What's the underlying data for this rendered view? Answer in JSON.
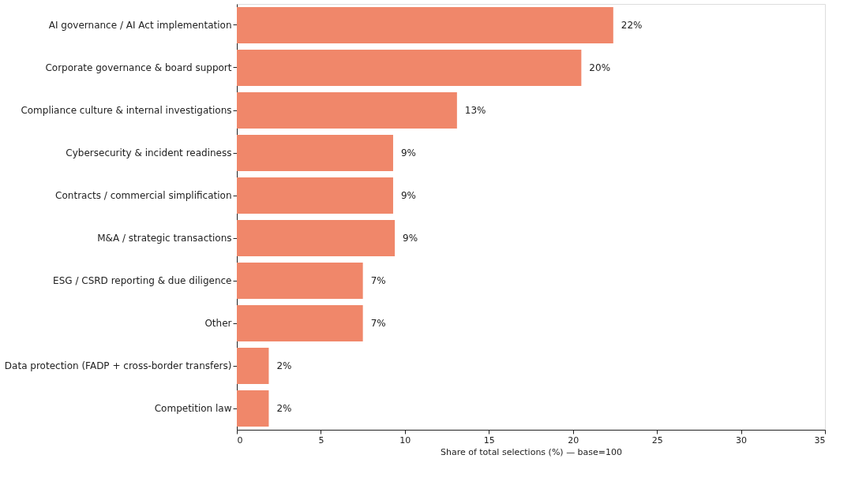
{
  "chart_data": {
    "type": "bar",
    "orientation": "horizontal",
    "xlabel": "Share of total selections (%) — base=100",
    "categories": [
      "AI governance / AI Act implementation",
      "Corporate governance & board support",
      "Compliance culture & internal investigations",
      "Cybersecurity & incident readiness",
      "Contracts / commercial simplification",
      "M&A / strategic transactions",
      "ESG / CSRD reporting & due diligence",
      "Other",
      "Data protection (FADP + cross-border transfers)",
      "Competition law"
    ],
    "values": [
      22.4,
      20.5,
      13.1,
      9.3,
      9.3,
      9.4,
      7.5,
      7.5,
      1.9,
      1.9
    ],
    "value_labels": [
      "22%",
      "20%",
      "13%",
      "9%",
      "9%",
      "9%",
      "7%",
      "7%",
      "2%",
      "2%"
    ],
    "color": "#f0876a",
    "xlim": [
      0,
      35
    ],
    "xticks": [
      0,
      5,
      10,
      15,
      20,
      25,
      30,
      35
    ],
    "grid": false
  }
}
